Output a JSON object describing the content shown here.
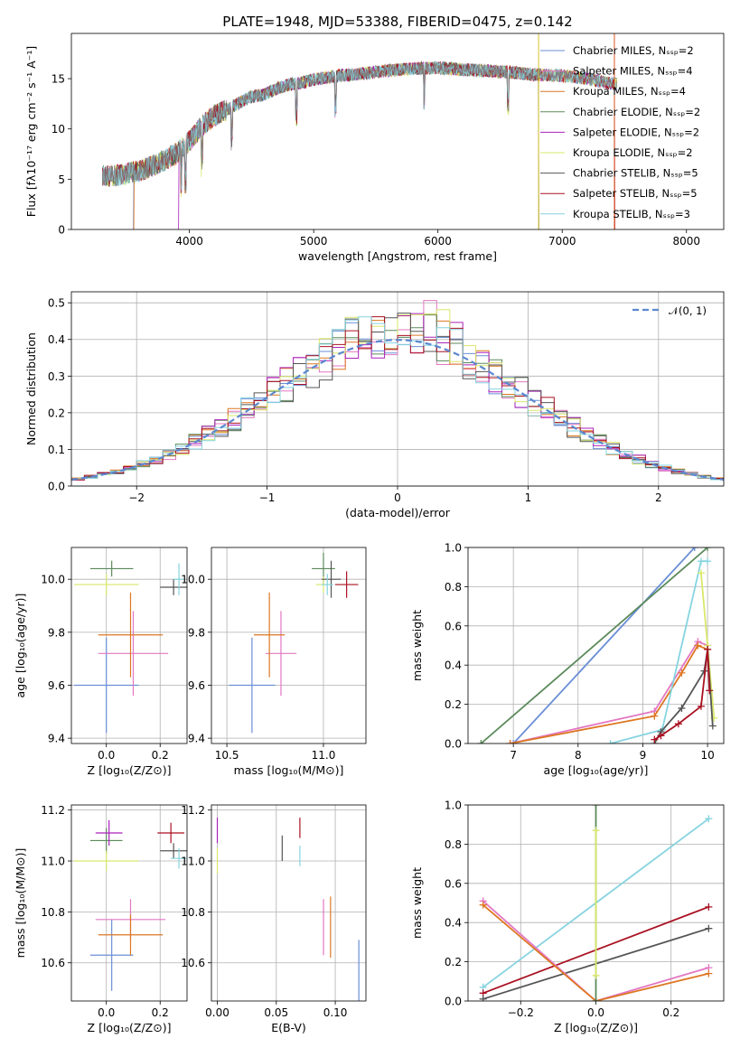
{
  "chart_data": [
    {
      "id": "spectrum",
      "type": "line",
      "title": "PLATE=1948, MJD=53388, FIBERID=0475, z=0.142",
      "xlabel": "wavelength [Angstrom, rest frame]",
      "ylabel": "Flux [fλ10⁻¹⁷ erg cm⁻² s⁻¹ A⁻¹]",
      "xlim": [
        3050,
        8300
      ],
      "ylim": [
        0,
        19.5
      ],
      "xticks": [
        4000,
        5000,
        6000,
        7000,
        8000
      ],
      "yticks": [
        0,
        5,
        10,
        15
      ],
      "grid": false,
      "legend_position": "top-right",
      "data_color": "#7f7f7f",
      "envelope": {
        "x": [
          3300,
          3400,
          3500,
          3600,
          3700,
          3800,
          3900,
          4000,
          4100,
          4200,
          4300,
          4400,
          4500,
          4600,
          4700,
          4800,
          4900,
          5000,
          5200,
          5400,
          5600,
          5800,
          6000,
          6200,
          6400,
          6600,
          6800,
          7000,
          7200,
          7400
        ],
        "y": [
          5.4,
          5.3,
          5.6,
          5.8,
          6.3,
          6.9,
          7.6,
          8.8,
          10.3,
          11.3,
          11.9,
          12.6,
          13.2,
          13.4,
          14.0,
          14.4,
          14.6,
          14.9,
          15.3,
          15.5,
          15.8,
          16.0,
          16.1,
          15.9,
          15.8,
          15.6,
          15.4,
          15.3,
          15.0,
          14.5
        ]
      },
      "series": [
        {
          "name": "Chabrier MILES, N_SSP=2",
          "color": "#6b8fd6"
        },
        {
          "name": "Salpeter MILES, N_SSP=4",
          "color": "#e377c2"
        },
        {
          "name": "Kroupa MILES, N_SSP=4",
          "color": "#dd7722"
        },
        {
          "name": "Chabrier ELODIE, N_SSP=2",
          "color": "#5b8a5b"
        },
        {
          "name": "Salpeter ELODIE, N_SSP=2",
          "color": "#aa22bb"
        },
        {
          "name": "Kroupa ELODIE, N_SSP=2",
          "color": "#d9e86a"
        },
        {
          "name": "Chabrier STELIB, N_SSP=5",
          "color": "#555555"
        },
        {
          "name": "Salpeter STELIB, N_SSP=5",
          "color": "#aa1122"
        },
        {
          "name": "Kroupa STELIB, N_SSP=3",
          "color": "#86d4e0"
        }
      ]
    },
    {
      "id": "residuals",
      "type": "line",
      "xlabel": "(data-model)/error",
      "ylabel": "Normed distribution",
      "xlim": [
        -2.5,
        2.5
      ],
      "ylim": [
        0,
        0.53
      ],
      "xticks": [
        -2,
        -1,
        0,
        1,
        2
      ],
      "yticks": [
        0.0,
        0.1,
        0.2,
        0.3,
        0.4,
        0.5
      ],
      "grid": true,
      "legend_position": "top-right",
      "normal_label": "𝒩(0, 1)",
      "normal_color": "#5b88d0"
    },
    {
      "id": "age-z",
      "type": "scatter",
      "xlabel": "Z [log₁₀(Z/Z⊙)]",
      "ylabel": "age  [log₁₀(age/yr)]",
      "xlim": [
        -0.13,
        0.3
      ],
      "ylim": [
        9.38,
        10.12
      ],
      "xticks": [
        0.0,
        0.2
      ],
      "yticks": [
        9.4,
        9.6,
        9.8,
        10.0
      ],
      "grid": true,
      "points": [
        {
          "x": 0.0,
          "y": 9.6,
          "xerr": 0.12,
          "yerr": 0.18,
          "color": "#6b8fd6"
        },
        {
          "x": 0.1,
          "y": 9.72,
          "xerr": 0.13,
          "yerr": 0.16,
          "color": "#e377c2"
        },
        {
          "x": 0.09,
          "y": 9.79,
          "xerr": 0.12,
          "yerr": 0.16,
          "color": "#dd7722"
        },
        {
          "x": 0.02,
          "y": 10.04,
          "xerr": 0.08,
          "yerr": 0.03,
          "color": "#5b8a5b"
        },
        {
          "x": 0.0,
          "y": 9.98,
          "xerr": 0.12,
          "yerr": 0.04,
          "color": "#d9e86a"
        },
        {
          "x": 0.25,
          "y": 9.97,
          "xerr": 0.05,
          "yerr": 0.03,
          "color": "#555555"
        },
        {
          "x": 0.27,
          "y": 10.0,
          "xerr": 0.02,
          "yerr": 0.06,
          "color": "#86d4e0"
        }
      ]
    },
    {
      "id": "age-mass",
      "type": "scatter",
      "xlabel": "mass [log₁₀(M/M⊙)]",
      "xlim": [
        10.42,
        11.22
      ],
      "ylim": [
        9.38,
        10.12
      ],
      "xticks": [
        10.5,
        11.0
      ],
      "yticks": [
        9.4,
        9.6,
        9.8,
        10.0
      ],
      "grid": true,
      "points": [
        {
          "x": 10.63,
          "y": 9.6,
          "xerr": 0.12,
          "yerr": 0.18,
          "color": "#6b8fd6"
        },
        {
          "x": 10.78,
          "y": 9.72,
          "xerr": 0.08,
          "yerr": 0.16,
          "color": "#e377c2"
        },
        {
          "x": 10.72,
          "y": 9.79,
          "xerr": 0.08,
          "yerr": 0.16,
          "color": "#dd7722"
        },
        {
          "x": 11.0,
          "y": 10.04,
          "xerr": 0.06,
          "yerr": 0.06,
          "color": "#5b8a5b"
        },
        {
          "x": 11.0,
          "y": 9.98,
          "xerr": 0.04,
          "yerr": 0.03,
          "color": "#d9e86a"
        },
        {
          "x": 11.04,
          "y": 10.0,
          "xerr": 0.05,
          "yerr": 0.07,
          "color": "#555555"
        },
        {
          "x": 11.12,
          "y": 9.98,
          "xerr": 0.06,
          "yerr": 0.05,
          "color": "#aa1122"
        },
        {
          "x": 11.02,
          "y": 9.98,
          "xerr": 0.03,
          "yerr": 0.04,
          "color": "#86d4e0"
        }
      ]
    },
    {
      "id": "weight-age",
      "type": "line",
      "xlabel": "age  [log₁₀(age/yr)]",
      "ylabel": "mass weight",
      "xlim": [
        6.3,
        10.25
      ],
      "ylim": [
        0,
        1.0
      ],
      "xticks": [
        7,
        8,
        9,
        10
      ],
      "yticks": [
        0.0,
        0.2,
        0.4,
        0.6,
        0.8,
        1.0
      ],
      "grid": true,
      "series": [
        {
          "color": "#6b8fd6",
          "x": [
            7.0,
            9.8
          ],
          "y": [
            0.0,
            1.0
          ]
        },
        {
          "color": "#5b8a5b",
          "x": [
            6.5,
            10.0
          ],
          "y": [
            0.0,
            1.0
          ]
        },
        {
          "color": "#e377c2",
          "x": [
            6.95,
            9.18,
            9.85,
            10.0
          ],
          "y": [
            0.0,
            0.165,
            0.52,
            0.5
          ]
        },
        {
          "color": "#dd7722",
          "x": [
            6.95,
            9.18,
            9.6,
            9.85,
            10.0
          ],
          "y": [
            0.0,
            0.14,
            0.36,
            0.5,
            0.48
          ]
        },
        {
          "color": "#86d4e0",
          "x": [
            8.5,
            9.3,
            9.9,
            10.0
          ],
          "y": [
            0.0,
            0.07,
            0.93,
            0.93
          ]
        },
        {
          "color": "#d9e86a",
          "x": [
            9.9,
            10.0,
            10.1
          ],
          "y": [
            0.87,
            0.5,
            0.13
          ]
        },
        {
          "color": "#555555",
          "x": [
            9.18,
            9.28,
            9.6,
            9.95,
            10.0,
            10.08
          ],
          "y": [
            0.0,
            0.06,
            0.18,
            0.37,
            0.48,
            0.09
          ]
        },
        {
          "color": "#aa1122",
          "x": [
            9.18,
            9.28,
            9.55,
            9.9,
            10.0,
            10.03
          ],
          "y": [
            0.02,
            0.04,
            0.1,
            0.19,
            0.48,
            0.27
          ]
        }
      ]
    },
    {
      "id": "mass-z",
      "type": "scatter",
      "xlabel": "Z [log₁₀(Z/Z⊙)]",
      "ylabel": "mass [log₁₀(M/M⊙)]",
      "xlim": [
        -0.13,
        0.3
      ],
      "ylim": [
        10.45,
        11.22
      ],
      "xticks": [
        0.0,
        0.2
      ],
      "yticks": [
        10.6,
        10.8,
        11.0,
        11.2
      ],
      "grid": true,
      "points": [
        {
          "x": 0.02,
          "y": 10.63,
          "xerr": 0.08,
          "yerr": 0.14,
          "color": "#6b8fd6"
        },
        {
          "x": 0.09,
          "y": 10.77,
          "xerr": 0.13,
          "yerr": 0.08,
          "color": "#e377c2"
        },
        {
          "x": 0.09,
          "y": 10.71,
          "xerr": 0.12,
          "yerr": 0.08,
          "color": "#dd7722"
        },
        {
          "x": 0.0,
          "y": 11.08,
          "xerr": 0.06,
          "yerr": 0.05,
          "color": "#5b8a5b"
        },
        {
          "x": 0.01,
          "y": 11.11,
          "xerr": 0.05,
          "yerr": 0.05,
          "color": "#aa22bb"
        },
        {
          "x": 0.0,
          "y": 11.0,
          "xerr": 0.12,
          "yerr": 0.04,
          "color": "#d9e86a"
        },
        {
          "x": 0.25,
          "y": 11.04,
          "xerr": 0.05,
          "yerr": 0.03,
          "color": "#555555"
        },
        {
          "x": 0.24,
          "y": 11.11,
          "xerr": 0.05,
          "yerr": 0.04,
          "color": "#aa1122"
        },
        {
          "x": 0.27,
          "y": 11.01,
          "xerr": 0.03,
          "yerr": 0.04,
          "color": "#86d4e0"
        }
      ]
    },
    {
      "id": "mass-ebv",
      "type": "scatter",
      "xlabel": "E(B-V)",
      "xlim": [
        -0.005,
        0.126
      ],
      "ylim": [
        10.45,
        11.22
      ],
      "xticks": [
        0.0,
        0.05,
        0.1
      ],
      "yticks": [
        10.6,
        10.8,
        11.0,
        11.2
      ],
      "grid": true,
      "points": [
        {
          "x": 0.12,
          "y": 10.57,
          "xerr": 0.0,
          "yerr": 0.12,
          "color": "#6b8fd6"
        },
        {
          "x": 0.09,
          "y": 10.74,
          "xerr": 0.0,
          "yerr": 0.11,
          "color": "#e377c2"
        },
        {
          "x": 0.096,
          "y": 10.74,
          "xerr": 0.0,
          "yerr": 0.12,
          "color": "#dd7722"
        },
        {
          "x": 0.055,
          "y": 11.05,
          "xerr": 0.0,
          "yerr": 0.05,
          "color": "#555555"
        },
        {
          "x": 0.07,
          "y": 11.13,
          "xerr": 0.0,
          "yerr": 0.04,
          "color": "#aa1122"
        },
        {
          "x": 0.07,
          "y": 11.02,
          "xerr": 0.0,
          "yerr": 0.04,
          "color": "#86d4e0"
        },
        {
          "x": 0.0,
          "y": 11.0,
          "xerr": 0.0,
          "yerr": 0.05,
          "color": "#d9e86a"
        },
        {
          "x": 0.0,
          "y": 11.12,
          "xerr": 0.0,
          "yerr": 0.05,
          "color": "#aa22bb"
        }
      ]
    },
    {
      "id": "weight-z",
      "type": "line",
      "xlabel": "Z [log₁₀(Z/Z⊙)]",
      "ylabel": "mass weight",
      "xlim": [
        -0.34,
        0.34
      ],
      "ylim": [
        0,
        1.0
      ],
      "xticks": [
        -0.2,
        0.0,
        0.2
      ],
      "yticks": [
        0.0,
        0.2,
        0.4,
        0.6,
        0.8,
        1.0
      ],
      "grid": true,
      "series": [
        {
          "color": "#86d4e0",
          "x": [
            -0.3,
            0.3
          ],
          "y": [
            0.07,
            0.93
          ]
        },
        {
          "color": "#aa1122",
          "x": [
            -0.3,
            0.3
          ],
          "y": [
            0.04,
            0.48
          ]
        },
        {
          "color": "#555555",
          "x": [
            -0.3,
            0.3
          ],
          "y": [
            0.01,
            0.37
          ]
        },
        {
          "color": "#e377c2",
          "x": [
            -0.3,
            0.0,
            0.3
          ],
          "y": [
            0.51,
            0.0,
            0.17
          ]
        },
        {
          "color": "#dd7722",
          "x": [
            -0.3,
            0.0,
            0.3
          ],
          "y": [
            0.49,
            0.0,
            0.14
          ]
        },
        {
          "color": "#5b8a5b",
          "x": [
            0.0,
            0.0
          ],
          "y": [
            0.0,
            1.0
          ]
        },
        {
          "color": "#d9e86a",
          "x": [
            0.0,
            0.0
          ],
          "y": [
            0.13,
            0.87
          ]
        }
      ]
    }
  ]
}
